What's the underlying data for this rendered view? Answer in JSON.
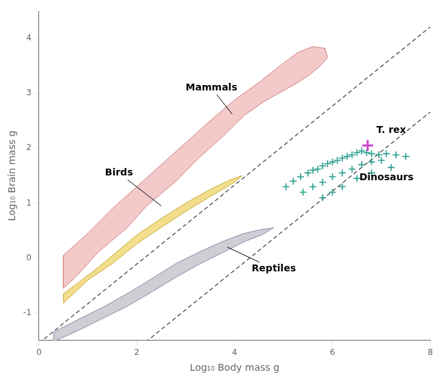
{
  "chart_data": {
    "type": "scatter",
    "xlabel": "Log₁₀ Body mass g",
    "ylabel": "Log₁₀ Brain mass g",
    "xlim": [
      0,
      8
    ],
    "ylim": [
      -1.5,
      4.5
    ],
    "xticks": [
      0,
      2,
      4,
      6,
      8
    ],
    "yticks": [
      -1,
      0,
      1,
      2,
      3,
      4
    ],
    "grid": false,
    "areas": [
      {
        "type": "area",
        "color": "#c5c5cc",
        "edge_color": "#8888aa",
        "points": [
          [
            0.3,
            -1.35
          ],
          [
            0.8,
            -1.12
          ],
          [
            1.3,
            -0.9
          ],
          [
            1.8,
            -0.65
          ],
          [
            2.3,
            -0.38
          ],
          [
            2.8,
            -0.1
          ],
          [
            3.3,
            0.12
          ],
          [
            3.8,
            0.32
          ],
          [
            4.2,
            0.45
          ],
          [
            4.55,
            0.52
          ],
          [
            4.8,
            0.55
          ],
          [
            4.55,
            0.42
          ],
          [
            4.2,
            0.3
          ],
          [
            3.8,
            0.12
          ],
          [
            3.3,
            -0.1
          ],
          [
            2.8,
            -0.35
          ],
          [
            2.3,
            -0.62
          ],
          [
            1.8,
            -0.88
          ],
          [
            1.3,
            -1.1
          ],
          [
            0.8,
            -1.32
          ],
          [
            0.3,
            -1.52
          ]
        ]
      },
      {
        "type": "area",
        "color": "#f2c0c0",
        "edge_color": "#d08080",
        "points": [
          [
            0.5,
            -0.55
          ],
          [
            0.8,
            -0.3
          ],
          [
            1.2,
            0.1
          ],
          [
            1.8,
            0.55
          ],
          [
            2.2,
            0.95
          ],
          [
            2.8,
            1.4
          ],
          [
            3.3,
            1.85
          ],
          [
            3.8,
            2.25
          ],
          [
            4.2,
            2.6
          ],
          [
            4.6,
            2.85
          ],
          [
            5.0,
            3.05
          ],
          [
            5.3,
            3.2
          ],
          [
            5.55,
            3.35
          ],
          [
            5.75,
            3.5
          ],
          [
            5.9,
            3.65
          ],
          [
            5.85,
            3.82
          ],
          [
            5.6,
            3.85
          ],
          [
            5.3,
            3.75
          ],
          [
            5.0,
            3.55
          ],
          [
            4.5,
            3.2
          ],
          [
            4.0,
            2.88
          ],
          [
            3.5,
            2.5
          ],
          [
            3.0,
            2.1
          ],
          [
            2.5,
            1.7
          ],
          [
            2.0,
            1.3
          ],
          [
            1.5,
            0.9
          ],
          [
            1.0,
            0.45
          ],
          [
            0.5,
            0.05
          ]
        ]
      },
      {
        "type": "area",
        "color": "#f0d878",
        "edge_color": "#c8a830",
        "points": [
          [
            0.5,
            -0.65
          ],
          [
            0.8,
            -0.45
          ],
          [
            1.2,
            -0.18
          ],
          [
            1.6,
            0.12
          ],
          [
            2.0,
            0.42
          ],
          [
            2.5,
            0.72
          ],
          [
            3.0,
            1.0
          ],
          [
            3.5,
            1.25
          ],
          [
            3.9,
            1.42
          ],
          [
            4.15,
            1.5
          ],
          [
            4.0,
            1.38
          ],
          [
            3.5,
            1.12
          ],
          [
            3.0,
            0.85
          ],
          [
            2.5,
            0.56
          ],
          [
            2.0,
            0.26
          ],
          [
            1.5,
            -0.1
          ],
          [
            1.0,
            -0.4
          ],
          [
            0.5,
            -0.82
          ]
        ]
      }
    ],
    "lines": [
      {
        "slope": 0.72,
        "intercept": -1.55,
        "color": "#444444",
        "line_style": "dashed"
      },
      {
        "slope": 0.72,
        "intercept": -3.1,
        "color": "#444444",
        "line_style": "dashed"
      }
    ],
    "series": [
      {
        "color": "#2a9d8f",
        "marker": "plus",
        "values": [
          [
            5.05,
            1.3
          ],
          [
            5.2,
            1.4
          ],
          [
            5.35,
            1.48
          ],
          [
            5.5,
            1.55
          ],
          [
            5.6,
            1.6
          ],
          [
            5.7,
            1.62
          ],
          [
            5.8,
            1.68
          ],
          [
            5.9,
            1.72
          ],
          [
            6.0,
            1.75
          ],
          [
            6.1,
            1.78
          ],
          [
            6.2,
            1.82
          ],
          [
            6.3,
            1.85
          ],
          [
            6.4,
            1.88
          ],
          [
            6.5,
            1.92
          ],
          [
            6.6,
            1.95
          ],
          [
            6.7,
            1.92
          ],
          [
            6.8,
            1.9
          ],
          [
            6.95,
            1.88
          ],
          [
            7.1,
            1.9
          ],
          [
            7.3,
            1.88
          ],
          [
            7.5,
            1.85
          ],
          [
            5.4,
            1.2
          ],
          [
            5.6,
            1.3
          ],
          [
            5.8,
            1.38
          ],
          [
            6.0,
            1.48
          ],
          [
            6.2,
            1.55
          ],
          [
            6.4,
            1.62
          ],
          [
            6.6,
            1.7
          ],
          [
            6.8,
            1.75
          ],
          [
            7.0,
            1.78
          ],
          [
            5.8,
            1.1
          ],
          [
            6.0,
            1.2
          ],
          [
            6.2,
            1.3
          ],
          [
            6.5,
            1.45
          ],
          [
            6.8,
            1.55
          ],
          [
            7.2,
            1.65
          ]
        ]
      },
      {
        "color": "#cc44cc",
        "marker": "plus",
        "values": [
          [
            6.72,
            2.05
          ]
        ]
      }
    ],
    "annotations": [
      {
        "text": "Mammals",
        "xy": [
          3.95,
          2.62
        ],
        "text_xy": [
          3.0,
          3.1
        ]
      },
      {
        "text": "Birds",
        "xy": [
          2.5,
          0.95
        ],
        "text_xy": [
          1.35,
          1.55
        ]
      },
      {
        "text": "Reptiles",
        "xy": [
          3.85,
          0.2
        ],
        "text_xy": [
          4.35,
          -0.2
        ]
      },
      {
        "text": "T. rex",
        "text_xy": [
          6.9,
          2.28
        ]
      },
      {
        "text": "Dinosaurs",
        "text_xy": [
          6.55,
          1.42
        ]
      }
    ]
  }
}
